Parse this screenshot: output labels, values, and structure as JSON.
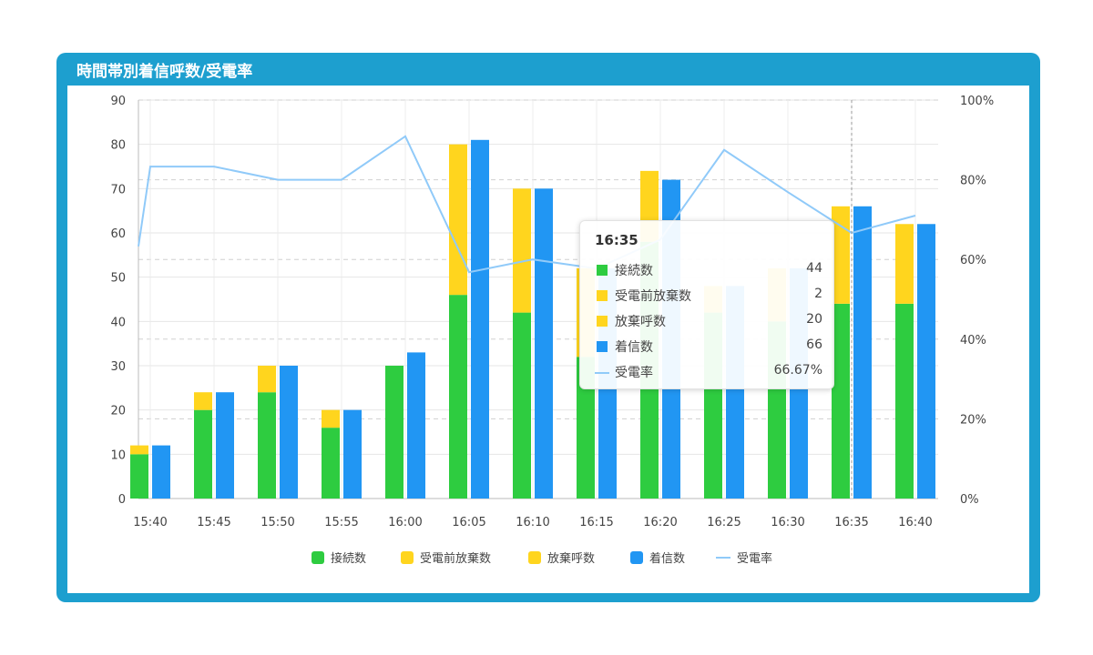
{
  "title": "時間帯別着信呼数/受電率",
  "chart_data": {
    "type": "bar",
    "categories": [
      "15:40",
      "15:45",
      "15:50",
      "15:55",
      "16:00",
      "16:05",
      "16:10",
      "16:15",
      "16:20",
      "16:25",
      "16:30",
      "16:35",
      "16:40"
    ],
    "series": [
      {
        "name": "接続数",
        "color": "#2ecc40",
        "values": [
          10,
          20,
          24,
          16,
          30,
          46,
          42,
          32,
          58,
          42,
          40,
          44,
          44
        ]
      },
      {
        "name": "受電前放棄数",
        "color": "#ffd51e",
        "values": [
          2,
          4,
          6,
          4,
          0,
          34,
          28,
          20,
          16,
          6,
          12,
          2,
          18
        ]
      },
      {
        "name": "放棄呼数",
        "color": "#ffd51e",
        "values": [
          0,
          0,
          0,
          0,
          0,
          0,
          0,
          0,
          0,
          0,
          0,
          20,
          0
        ]
      },
      {
        "name": "着信数",
        "color": "#2196f3",
        "values": [
          12,
          24,
          30,
          20,
          33,
          81,
          70,
          52,
          72,
          48,
          52,
          66,
          62
        ]
      },
      {
        "name": "受電率",
        "color": "#90caf9",
        "type": "line",
        "values": [
          83.3,
          83.3,
          80,
          80,
          90.9,
          56.8,
          60,
          57.7,
          65,
          87.5,
          76.9,
          66.67,
          71
        ]
      }
    ],
    "y_left": {
      "ylim": [
        0,
        90
      ],
      "ticks": [
        "0",
        "10",
        "20",
        "30",
        "40",
        "50",
        "60",
        "70",
        "80",
        "90"
      ]
    },
    "y_right": {
      "ylim": [
        0,
        100
      ],
      "ticks": [
        "0%",
        "20%",
        "40%",
        "60%",
        "80%",
        "100%"
      ]
    },
    "grid": true,
    "legend": "bottom-center",
    "tooltip": {
      "time": "16:35",
      "rows": [
        {
          "label": "接続数",
          "value": "44",
          "color": "#2ecc40",
          "kind": "square"
        },
        {
          "label": "受電前放棄数",
          "value": "2",
          "color": "#ffd51e",
          "kind": "square"
        },
        {
          "label": "放棄呼数",
          "value": "20",
          "color": "#ffd51e",
          "kind": "square"
        },
        {
          "label": "着信数",
          "value": "66",
          "color": "#2196f3",
          "kind": "square"
        },
        {
          "label": "受電率",
          "value": "66.67%",
          "color": "#90caf9",
          "kind": "line"
        }
      ]
    }
  }
}
